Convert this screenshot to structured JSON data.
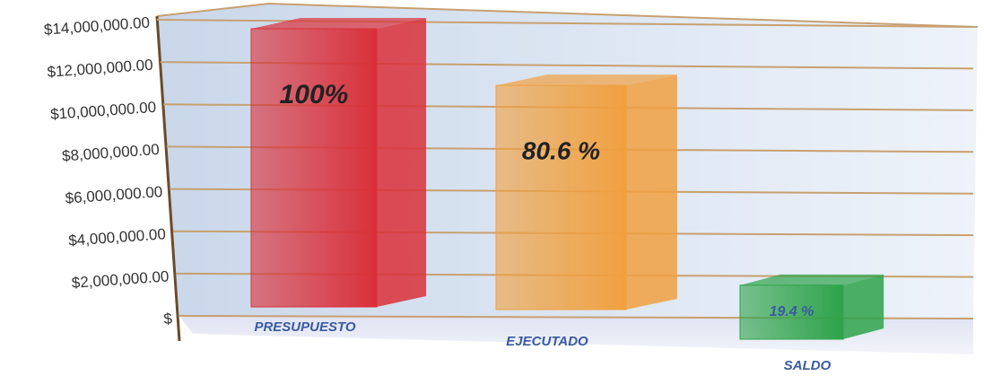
{
  "chart_data": {
    "type": "bar3d",
    "categories": [
      "PRESUPUESTO",
      "EJECUTADO",
      "SALDO"
    ],
    "values": [
      13500000,
      10880000,
      2620000
    ],
    "bar_labels": [
      "100%",
      "80.6 %",
      "19.4 %"
    ],
    "colors": [
      "#d9303a",
      "#f0a040",
      "#2ea34a"
    ],
    "ylim": [
      0,
      14000000
    ],
    "yticks": [
      {
        "value": 0,
        "label": "$"
      },
      {
        "value": 2000000,
        "label": "$2,000,000.00"
      },
      {
        "value": 4000000,
        "label": "$4,000,000.00"
      },
      {
        "value": 6000000,
        "label": "$6,000,000.00"
      },
      {
        "value": 8000000,
        "label": "$8,000,000.00"
      },
      {
        "value": 10000000,
        "label": "$10,000,000.00"
      },
      {
        "value": 12000000,
        "label": "$12,000,000.00"
      },
      {
        "value": 14000000,
        "label": "$14,000,000.00"
      }
    ],
    "grid": true
  }
}
